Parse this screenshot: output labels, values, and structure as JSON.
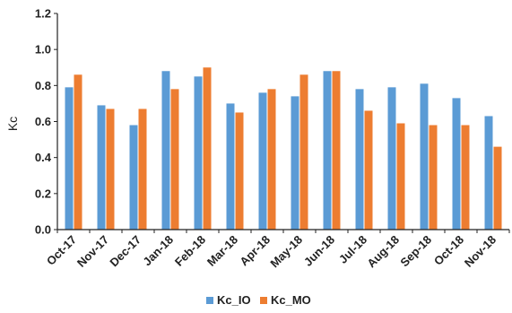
{
  "chart_data": {
    "type": "bar",
    "title": "",
    "xlabel": "",
    "ylabel": "Kc",
    "ylim": [
      0,
      1.2
    ],
    "yticks": [
      "0.0",
      "0.2",
      "0.4",
      "0.6",
      "0.8",
      "1.0",
      "1.2"
    ],
    "grid": false,
    "legend_position": "bottom",
    "categories": [
      "Oct-17",
      "Nov-17",
      "Dec-17",
      "Jan-18",
      "Feb-18",
      "Mar-18",
      "Apr-18",
      "May-18",
      "Jun-18",
      "Jul-18",
      "Aug-18",
      "Sep-18",
      "Oct-18",
      "Nov-18"
    ],
    "series": [
      {
        "name": "Kc_IO",
        "color": "#5b9bd5",
        "values": [
          0.79,
          0.69,
          0.58,
          0.88,
          0.85,
          0.7,
          0.76,
          0.74,
          0.88,
          0.78,
          0.79,
          0.81,
          0.73,
          0.63
        ]
      },
      {
        "name": "Kc_MO",
        "color": "#ed7d31",
        "values": [
          0.86,
          0.67,
          0.67,
          0.78,
          0.9,
          0.65,
          0.78,
          0.86,
          0.88,
          0.66,
          0.59,
          0.58,
          0.58,
          0.46
        ]
      }
    ]
  }
}
